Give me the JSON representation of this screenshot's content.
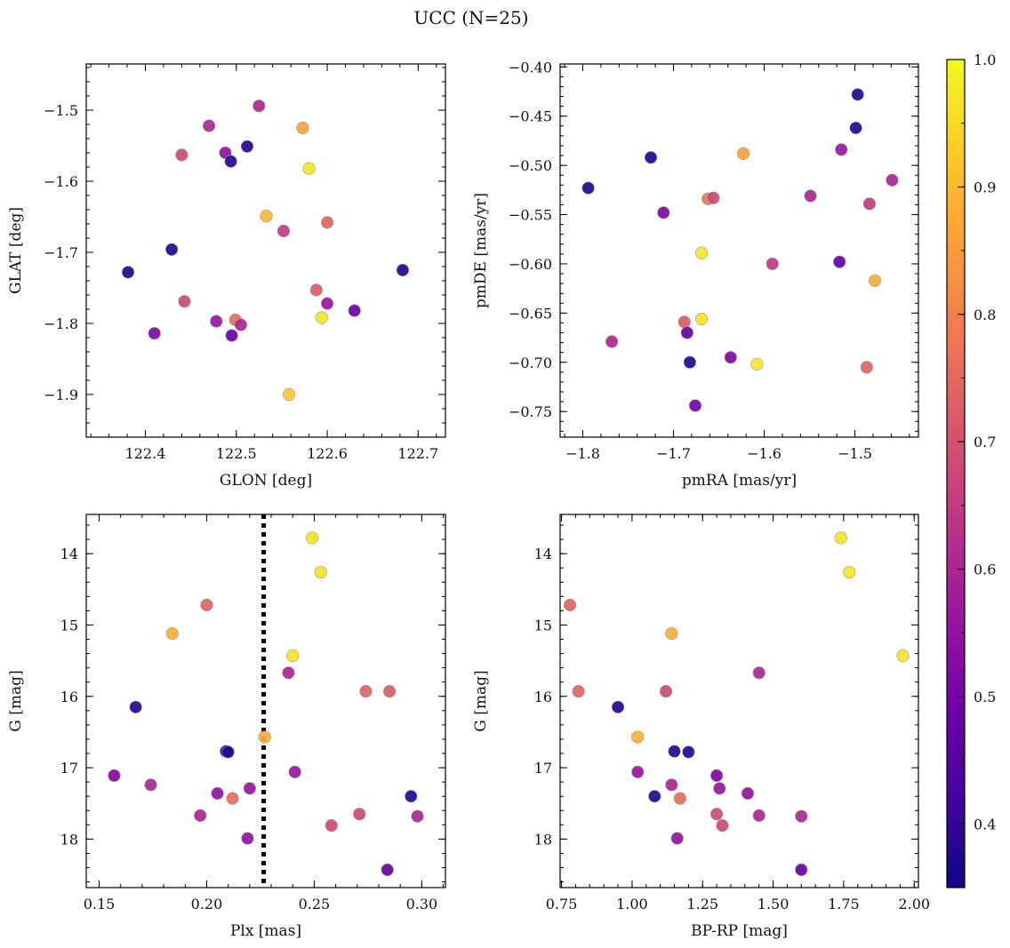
{
  "title": "UCC (N=25)",
  "colormap": [
    "#0d0887",
    "#46039f",
    "#7201a8",
    "#9c179e",
    "#bd3786",
    "#d8576b",
    "#ed7953",
    "#fb9f3a",
    "#fdca26",
    "#f0f921"
  ],
  "colorbar": {
    "vmin": 0.35,
    "vmax": 1.0,
    "ticks": [
      0.4,
      0.5,
      0.6,
      0.7,
      0.8,
      0.9,
      1.0
    ],
    "tick_labels": [
      "0.4",
      "0.5",
      "0.6",
      "0.7",
      "0.8",
      "0.9",
      "1.0"
    ]
  },
  "chart_data": [
    {
      "type": "scatter",
      "name": "glon-glat",
      "xlabel": "GLON [deg]",
      "ylabel": "GLAT [deg]",
      "xlim": [
        122.335,
        122.73
      ],
      "ylim": [
        -1.96,
        -1.435
      ],
      "x_inverted": false,
      "y_inverted": false,
      "xticks": [
        122.4,
        122.5,
        122.6,
        122.7
      ],
      "xtick_labels": [
        "122.4",
        "122.5",
        "122.6",
        "122.7"
      ],
      "yticks": [
        -1.5,
        -1.6,
        -1.7,
        -1.8,
        -1.9
      ],
      "ytick_labels": [
        "−1.5",
        "−1.6",
        "−1.7",
        "−1.8",
        "−1.9"
      ],
      "points": [
        {
          "x": 122.381,
          "y": -1.728,
          "c": 0.37
        },
        {
          "x": 122.41,
          "y": -1.814,
          "c": 0.52
        },
        {
          "x": 122.429,
          "y": -1.696,
          "c": 0.38
        },
        {
          "x": 122.44,
          "y": -1.563,
          "c": 0.68
        },
        {
          "x": 122.443,
          "y": -1.769,
          "c": 0.68
        },
        {
          "x": 122.47,
          "y": -1.522,
          "c": 0.6
        },
        {
          "x": 122.478,
          "y": -1.797,
          "c": 0.56
        },
        {
          "x": 122.488,
          "y": -1.56,
          "c": 0.55
        },
        {
          "x": 122.494,
          "y": -1.572,
          "c": 0.38
        },
        {
          "x": 122.495,
          "y": -1.817,
          "c": 0.48
        },
        {
          "x": 122.499,
          "y": -1.795,
          "c": 0.76
        },
        {
          "x": 122.505,
          "y": -1.802,
          "c": 0.6
        },
        {
          "x": 122.512,
          "y": -1.551,
          "c": 0.38
        },
        {
          "x": 122.525,
          "y": -1.494,
          "c": 0.6
        },
        {
          "x": 122.533,
          "y": -1.649,
          "c": 0.9
        },
        {
          "x": 122.552,
          "y": -1.67,
          "c": 0.65
        },
        {
          "x": 122.558,
          "y": -1.9,
          "c": 0.92
        },
        {
          "x": 122.573,
          "y": -1.525,
          "c": 0.86
        },
        {
          "x": 122.58,
          "y": -1.582,
          "c": 0.97
        },
        {
          "x": 122.588,
          "y": -1.753,
          "c": 0.72
        },
        {
          "x": 122.594,
          "y": -1.792,
          "c": 0.97
        },
        {
          "x": 122.6,
          "y": -1.772,
          "c": 0.56
        },
        {
          "x": 122.6,
          "y": -1.658,
          "c": 0.74
        },
        {
          "x": 122.63,
          "y": -1.782,
          "c": 0.48
        },
        {
          "x": 122.683,
          "y": -1.725,
          "c": 0.38
        }
      ]
    },
    {
      "type": "scatter",
      "name": "pmra-pmde",
      "xlabel": "pmRA [mas/yr]",
      "ylabel": "pmDE [mas/yr]",
      "xlim": [
        -1.825,
        -1.43
      ],
      "ylim": [
        -0.776,
        -0.397
      ],
      "x_inverted": false,
      "y_inverted": false,
      "xticks": [
        -1.8,
        -1.7,
        -1.6,
        -1.5
      ],
      "xtick_labels": [
        "−1.8",
        "−1.7",
        "−1.6",
        "−1.5"
      ],
      "yticks": [
        -0.4,
        -0.45,
        -0.5,
        -0.55,
        -0.6,
        -0.65,
        -0.7,
        -0.75
      ],
      "ytick_labels": [
        "−0.40",
        "−0.45",
        "−0.50",
        "−0.55",
        "−0.60",
        "−0.65",
        "−0.70",
        "−0.75"
      ],
      "points": [
        {
          "x": -1.794,
          "y": -0.523,
          "c": 0.37
        },
        {
          "x": -1.768,
          "y": -0.679,
          "c": 0.6
        },
        {
          "x": -1.725,
          "y": -0.492,
          "c": 0.38
        },
        {
          "x": -1.711,
          "y": -0.548,
          "c": 0.52
        },
        {
          "x": -1.688,
          "y": -0.659,
          "c": 0.72
        },
        {
          "x": -1.685,
          "y": -0.67,
          "c": 0.48
        },
        {
          "x": -1.682,
          "y": -0.7,
          "c": 0.38
        },
        {
          "x": -1.676,
          "y": -0.744,
          "c": 0.5
        },
        {
          "x": -1.669,
          "y": -0.589,
          "c": 0.97
        },
        {
          "x": -1.669,
          "y": -0.656,
          "c": 0.97
        },
        {
          "x": -1.662,
          "y": -0.534,
          "c": 0.78
        },
        {
          "x": -1.656,
          "y": -0.533,
          "c": 0.68
        },
        {
          "x": -1.637,
          "y": -0.695,
          "c": 0.52
        },
        {
          "x": -1.623,
          "y": -0.488,
          "c": 0.86
        },
        {
          "x": -1.608,
          "y": -0.702,
          "c": 0.97
        },
        {
          "x": -1.591,
          "y": -0.6,
          "c": 0.65
        },
        {
          "x": -1.549,
          "y": -0.531,
          "c": 0.6
        },
        {
          "x": -1.517,
          "y": -0.598,
          "c": 0.48
        },
        {
          "x": -1.515,
          "y": -0.484,
          "c": 0.56
        },
        {
          "x": -1.499,
          "y": -0.462,
          "c": 0.38
        },
        {
          "x": -1.497,
          "y": -0.428,
          "c": 0.38
        },
        {
          "x": -1.487,
          "y": -0.705,
          "c": 0.74
        },
        {
          "x": -1.484,
          "y": -0.539,
          "c": 0.65
        },
        {
          "x": -1.478,
          "y": -0.617,
          "c": 0.88
        },
        {
          "x": -1.459,
          "y": -0.515,
          "c": 0.6
        }
      ]
    },
    {
      "type": "scatter",
      "name": "plx-g",
      "xlabel": "Plx [mas]",
      "ylabel": "G [mag]",
      "xlim": [
        0.144,
        0.311
      ],
      "ylim": [
        13.45,
        18.68
      ],
      "x_inverted": false,
      "y_inverted": true,
      "vline": 0.2265,
      "xticks": [
        0.15,
        0.2,
        0.25,
        0.3
      ],
      "xtick_labels": [
        "0.15",
        "0.20",
        "0.25",
        "0.30"
      ],
      "yticks": [
        14,
        15,
        16,
        17,
        18
      ],
      "ytick_labels": [
        "14",
        "15",
        "16",
        "17",
        "18"
      ],
      "points": [
        {
          "x": 0.249,
          "y": 13.78,
          "c": 0.97
        },
        {
          "x": 0.253,
          "y": 14.26,
          "c": 0.97
        },
        {
          "x": 0.2,
          "y": 14.72,
          "c": 0.74
        },
        {
          "x": 0.184,
          "y": 15.12,
          "c": 0.88
        },
        {
          "x": 0.24,
          "y": 15.43,
          "c": 0.97
        },
        {
          "x": 0.238,
          "y": 15.67,
          "c": 0.6
        },
        {
          "x": 0.274,
          "y": 15.93,
          "c": 0.74
        },
        {
          "x": 0.285,
          "y": 15.93,
          "c": 0.72
        },
        {
          "x": 0.167,
          "y": 16.15,
          "c": 0.38
        },
        {
          "x": 0.227,
          "y": 16.57,
          "c": 0.88
        },
        {
          "x": 0.209,
          "y": 16.77,
          "c": 0.38
        },
        {
          "x": 0.21,
          "y": 16.78,
          "c": 0.38
        },
        {
          "x": 0.241,
          "y": 17.06,
          "c": 0.56
        },
        {
          "x": 0.157,
          "y": 17.11,
          "c": 0.52
        },
        {
          "x": 0.174,
          "y": 17.24,
          "c": 0.6
        },
        {
          "x": 0.22,
          "y": 17.29,
          "c": 0.56
        },
        {
          "x": 0.205,
          "y": 17.36,
          "c": 0.55
        },
        {
          "x": 0.295,
          "y": 17.4,
          "c": 0.38
        },
        {
          "x": 0.212,
          "y": 17.43,
          "c": 0.76
        },
        {
          "x": 0.271,
          "y": 17.65,
          "c": 0.68
        },
        {
          "x": 0.197,
          "y": 17.67,
          "c": 0.6
        },
        {
          "x": 0.298,
          "y": 17.68,
          "c": 0.6
        },
        {
          "x": 0.258,
          "y": 17.81,
          "c": 0.68
        },
        {
          "x": 0.219,
          "y": 17.99,
          "c": 0.55
        },
        {
          "x": 0.284,
          "y": 18.43,
          "c": 0.48
        }
      ]
    },
    {
      "type": "scatter",
      "name": "bprp-g",
      "xlabel": "BP-RP [mag]",
      "ylabel": "G [mag]",
      "xlim": [
        0.745,
        2.015
      ],
      "ylim": [
        13.45,
        18.68
      ],
      "x_inverted": false,
      "y_inverted": true,
      "xticks": [
        0.75,
        1.0,
        1.25,
        1.5,
        1.75,
        2.0
      ],
      "xtick_labels": [
        "0.75",
        "1.00",
        "1.25",
        "1.50",
        "1.75",
        "2.00"
      ],
      "yticks": [
        14,
        15,
        16,
        17,
        18
      ],
      "ytick_labels": [
        "14",
        "15",
        "16",
        "17",
        "18"
      ],
      "points": [
        {
          "x": 1.74,
          "y": 13.78,
          "c": 0.97
        },
        {
          "x": 1.77,
          "y": 14.26,
          "c": 0.97
        },
        {
          "x": 0.78,
          "y": 14.72,
          "c": 0.74
        },
        {
          "x": 1.14,
          "y": 15.12,
          "c": 0.88
        },
        {
          "x": 1.96,
          "y": 15.43,
          "c": 0.97
        },
        {
          "x": 1.45,
          "y": 15.67,
          "c": 0.6
        },
        {
          "x": 0.81,
          "y": 15.93,
          "c": 0.74
        },
        {
          "x": 1.12,
          "y": 15.93,
          "c": 0.68
        },
        {
          "x": 0.95,
          "y": 16.15,
          "c": 0.38
        },
        {
          "x": 1.02,
          "y": 16.57,
          "c": 0.88
        },
        {
          "x": 1.15,
          "y": 16.77,
          "c": 0.38
        },
        {
          "x": 1.2,
          "y": 16.78,
          "c": 0.38
        },
        {
          "x": 1.02,
          "y": 17.06,
          "c": 0.56
        },
        {
          "x": 1.3,
          "y": 17.11,
          "c": 0.52
        },
        {
          "x": 1.14,
          "y": 17.24,
          "c": 0.6
        },
        {
          "x": 1.31,
          "y": 17.29,
          "c": 0.56
        },
        {
          "x": 1.41,
          "y": 17.36,
          "c": 0.55
        },
        {
          "x": 1.08,
          "y": 17.4,
          "c": 0.38
        },
        {
          "x": 1.17,
          "y": 17.43,
          "c": 0.76
        },
        {
          "x": 1.3,
          "y": 17.65,
          "c": 0.68
        },
        {
          "x": 1.45,
          "y": 17.67,
          "c": 0.6
        },
        {
          "x": 1.6,
          "y": 17.68,
          "c": 0.6
        },
        {
          "x": 1.32,
          "y": 17.81,
          "c": 0.68
        },
        {
          "x": 1.16,
          "y": 17.99,
          "c": 0.55
        },
        {
          "x": 1.6,
          "y": 18.43,
          "c": 0.48
        }
      ]
    }
  ]
}
